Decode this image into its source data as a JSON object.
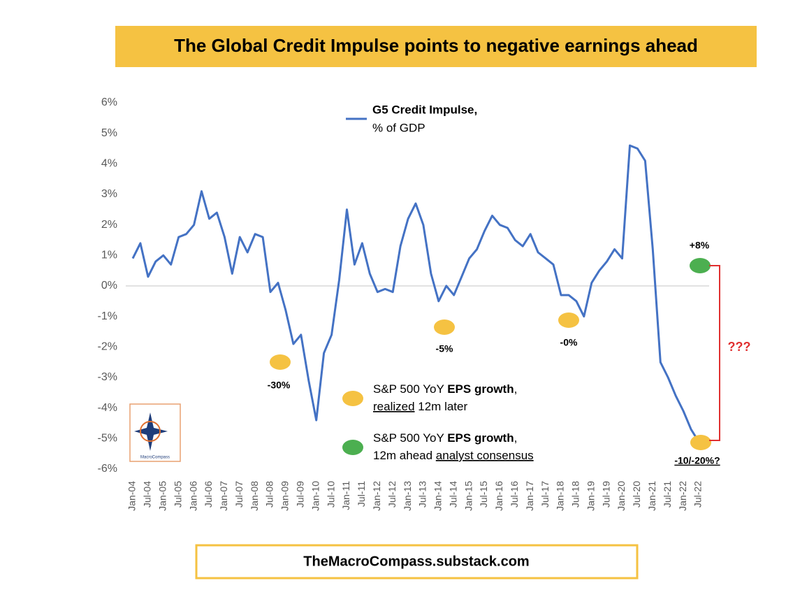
{
  "chart_data": {
    "type": "line",
    "title": "The Global Credit Impulse points to negative earnings ahead",
    "source": "TheMacroCompass.substack.com",
    "categories": [
      "Jan-04",
      null,
      "Jul-04",
      null,
      "Jan-05",
      null,
      "Jul-05",
      null,
      "Jan-06",
      null,
      "Jul-06",
      null,
      "Jan-07",
      null,
      "Jul-07",
      null,
      "Jan-08",
      null,
      "Jul-08",
      null,
      "Jan-09",
      null,
      "Jul-09",
      null,
      "Jan-10",
      null,
      "Jul-10",
      null,
      "Jan-11",
      null,
      "Jul-11",
      null,
      "Jan-12",
      null,
      "Jul-12",
      null,
      "Jan-13",
      null,
      "Jul-13",
      null,
      "Jan-14",
      null,
      "Jul-14",
      null,
      "Jan-15",
      null,
      "Jul-15",
      null,
      "Jan-16",
      null,
      "Jul-16",
      null,
      "Jan-17",
      null,
      "Jul-17",
      null,
      "Jan-18",
      null,
      "Jul-18",
      null,
      "Jan-19",
      null,
      "Jul-19",
      null,
      "Jan-20",
      null,
      "Jul-20",
      null,
      "Jan-21",
      null,
      "Jul-21",
      null,
      "Jan-22",
      null,
      "Jul-22"
    ],
    "series": [
      {
        "name": "G5 Credit Impulse,",
        "unit": "% of GDP",
        "color": "#4472c4",
        "values": [
          0.9,
          1.4,
          0.3,
          0.8,
          1.0,
          0.7,
          1.6,
          1.7,
          2.0,
          3.1,
          2.2,
          2.4,
          1.6,
          0.4,
          1.6,
          1.1,
          1.7,
          1.6,
          -0.2,
          0.1,
          -0.8,
          -1.9,
          -1.6,
          -3.1,
          -4.4,
          -2.2,
          -1.6,
          0.2,
          2.5,
          0.7,
          1.4,
          0.4,
          -0.2,
          -0.1,
          -0.2,
          1.3,
          2.2,
          2.7,
          2.0,
          0.4,
          -0.5,
          0.0,
          -0.3,
          0.3,
          0.9,
          1.2,
          1.8,
          2.3,
          2.0,
          1.9,
          1.5,
          1.3,
          1.7,
          1.1,
          0.9,
          0.7,
          -0.3,
          -0.3,
          -0.5,
          -1.0,
          0.1,
          0.5,
          0.8,
          1.2,
          0.9,
          4.6,
          4.5,
          4.1,
          1.2,
          -2.5,
          -3.0,
          -3.6,
          -4.1,
          -4.7,
          -5.1
        ]
      }
    ],
    "ylim": [
      -6,
      6
    ],
    "yticks": [
      {
        "value": 6,
        "label": "6%"
      },
      {
        "value": 5,
        "label": "5%"
      },
      {
        "value": 4,
        "label": "4%"
      },
      {
        "value": 3,
        "label": "3%"
      },
      {
        "value": 2,
        "label": "2%"
      },
      {
        "value": 1,
        "label": "1%"
      },
      {
        "value": 0,
        "label": "0%"
      },
      {
        "value": -1,
        "label": "-1%"
      },
      {
        "value": -2,
        "label": "-2%"
      },
      {
        "value": -3,
        "label": "-3%"
      },
      {
        "value": -4,
        "label": "-4%"
      },
      {
        "value": -5,
        "label": "-5%"
      },
      {
        "value": -6,
        "label": "-6%"
      }
    ],
    "grid": false,
    "dot_labels": [
      "-30%",
      "-5%",
      "-0%",
      "+8%",
      "-10/-20%?"
    ],
    "question": "???",
    "legend_items": [
      {
        "color": "#f5c242",
        "line1": [
          {
            "text": "S&P 500 YoY ",
            "style": "normal"
          },
          {
            "text": "EPS growth",
            "style": "bold"
          },
          {
            "text": ",",
            "style": "normal"
          }
        ],
        "line2": [
          {
            "text": "realized",
            "style": "underline"
          },
          {
            "text": " 12m later",
            "style": "normal"
          }
        ]
      },
      {
        "color": "#4caf50",
        "line1": [
          {
            "text": "S&P 500 YoY ",
            "style": "normal"
          },
          {
            "text": "EPS growth",
            "style": "bold"
          },
          {
            "text": ",",
            "style": "normal"
          }
        ],
        "line2": [
          {
            "text": "12m ahead ",
            "style": "normal"
          },
          {
            "text": "analyst consensus",
            "style": "underline"
          }
        ]
      }
    ]
  }
}
